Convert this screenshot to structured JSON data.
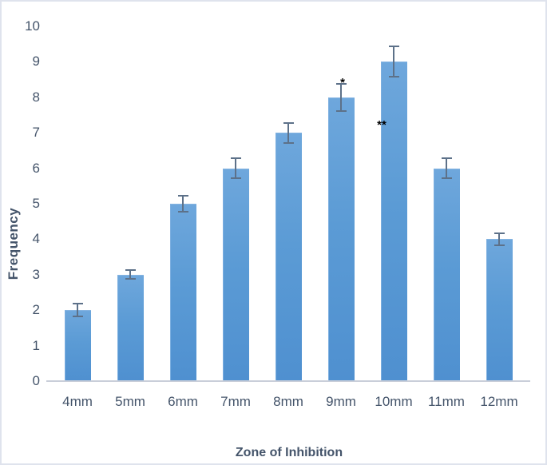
{
  "chart_data": {
    "type": "bar",
    "title": "",
    "xlabel": "Zone of Inhibition",
    "ylabel": "Frequency",
    "categories": [
      "4mm",
      "5mm",
      "6mm",
      "7mm",
      "8mm",
      "9mm",
      "10mm",
      "11mm",
      "12mm"
    ],
    "values": [
      2,
      3,
      5,
      6,
      7,
      8,
      9,
      6,
      4
    ],
    "errors": [
      0.2,
      0.15,
      0.25,
      0.3,
      0.3,
      0.4,
      0.45,
      0.3,
      0.2
    ],
    "ylim": [
      0,
      10
    ],
    "yticks": [
      0,
      1,
      2,
      3,
      4,
      5,
      6,
      7,
      8,
      9,
      10
    ],
    "grid": "off",
    "legend": "none",
    "bar_color": "#5b9bd5",
    "error_bar_color": "#5d7189",
    "axis_text_color": "#44546a",
    "axis_line_color": "#c9ced9",
    "figure_border_color": "#dfe3ed",
    "annotations": [
      {
        "text": "*",
        "category_index": 5,
        "value": 8.45,
        "dx": 2
      },
      {
        "text": "**",
        "category_index": 6,
        "value": 7.25,
        "dx": -15
      }
    ]
  }
}
